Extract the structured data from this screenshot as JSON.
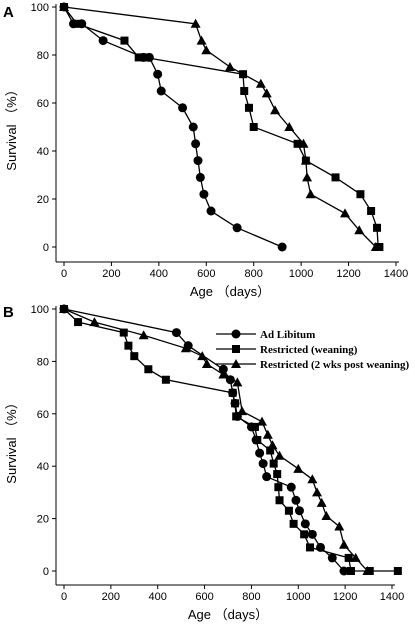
{
  "chart_data": [
    {
      "panel": "A",
      "type": "line",
      "xlabel": "Age （days）",
      "ylabel": "Survival （%）",
      "xlim": [
        0,
        1400
      ],
      "ylim": [
        0,
        100
      ],
      "xticks": [
        0,
        200,
        400,
        600,
        800,
        1000,
        1200,
        1400
      ],
      "yticks": [
        0,
        20,
        40,
        60,
        80,
        100
      ],
      "legend": "none",
      "series": [
        {
          "marker": "circle",
          "x": [
            0,
            40,
            75,
            165,
            335,
            360,
            395,
            410,
            500,
            545,
            555,
            565,
            575,
            590,
            620,
            730,
            920
          ],
          "y": [
            100,
            93,
            93,
            86,
            79,
            79,
            72,
            65,
            58,
            50,
            43,
            36,
            29,
            22,
            15,
            8,
            0
          ]
        },
        {
          "marker": "square",
          "x": [
            0,
            55,
            255,
            315,
            340,
            755,
            760,
            780,
            800,
            985,
            1020,
            1145,
            1250,
            1295,
            1320,
            1325,
            1330
          ],
          "y": [
            100,
            93,
            86,
            79,
            79,
            72,
            65,
            58,
            50,
            43,
            36,
            29,
            22,
            15,
            8,
            0,
            0
          ]
        },
        {
          "marker": "triangle",
          "x": [
            0,
            555,
            580,
            600,
            700,
            830,
            855,
            890,
            950,
            1010,
            1020,
            1025,
            1040,
            1185,
            1245,
            1315
          ],
          "y": [
            100,
            93,
            86,
            82,
            75,
            68,
            64,
            57,
            50,
            43,
            36,
            29,
            22,
            14,
            7,
            0
          ]
        }
      ]
    },
    {
      "panel": "B",
      "type": "line",
      "xlabel": "Age （days）",
      "ylabel": "Survival （%）",
      "xlim": [
        0,
        1400
      ],
      "ylim": [
        0,
        100
      ],
      "xticks": [
        0,
        200,
        400,
        600,
        800,
        1000,
        1200,
        1400
      ],
      "yticks": [
        0,
        20,
        40,
        60,
        80,
        100
      ],
      "legend": "top-right",
      "series": [
        {
          "name": "Ad Libitum",
          "marker": "circle",
          "x": [
            0,
            480,
            530,
            680,
            710,
            720,
            730,
            740,
            800,
            820,
            835,
            850,
            865,
            970,
            990,
            1005,
            1030,
            1060,
            1095,
            1145,
            1195
          ],
          "y": [
            100,
            91,
            86,
            77,
            73,
            68,
            64,
            59,
            55,
            50,
            45,
            41,
            36,
            32,
            27,
            23,
            18,
            14,
            9,
            5,
            0
          ]
        },
        {
          "name": "Restricted (weaning)",
          "marker": "square",
          "x": [
            0,
            60,
            255,
            275,
            300,
            360,
            435,
            720,
            730,
            735,
            815,
            825,
            880,
            895,
            910,
            915,
            920,
            960,
            980,
            1025,
            1050,
            1215,
            1225,
            1305,
            1425
          ],
          "y": [
            100,
            95,
            91,
            86,
            82,
            77,
            73,
            68,
            64,
            59,
            55,
            50,
            46,
            41,
            37,
            32,
            27,
            23,
            18,
            14,
            9,
            5,
            0,
            0,
            0
          ]
        },
        {
          "name": "Restricted (2 wks post weaning)",
          "marker": "triangle",
          "x": [
            0,
            130,
            340,
            520,
            590,
            610,
            680,
            740,
            760,
            845,
            870,
            890,
            920,
            1000,
            1060,
            1080,
            1100,
            1120,
            1175,
            1195,
            1245,
            1295
          ],
          "y": [
            100,
            95,
            90,
            85,
            82,
            79,
            75,
            72,
            61,
            57,
            52,
            48,
            44,
            39,
            35,
            30,
            26,
            21,
            17,
            10,
            5,
            0
          ]
        }
      ]
    }
  ]
}
